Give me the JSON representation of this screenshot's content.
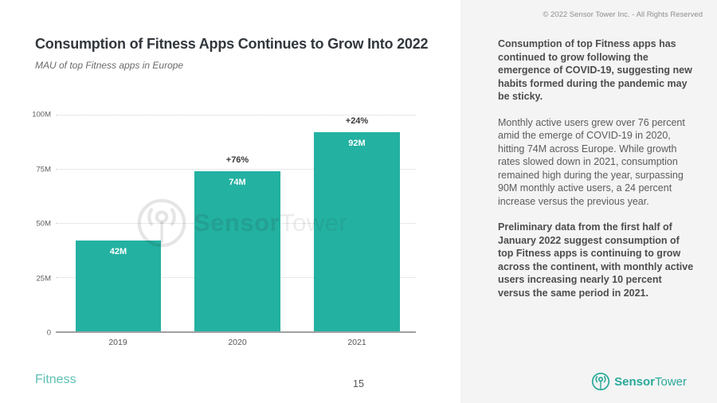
{
  "header": {
    "title": "Consumption of Fitness Apps Continues to Grow Into 2022",
    "subtitle": "MAU of top Fitness apps in Europe"
  },
  "chart_data": {
    "type": "bar",
    "title": "MAU of top Fitness apps in Europe",
    "categories": [
      "2019",
      "2020",
      "2021"
    ],
    "values": [
      42,
      74,
      92
    ],
    "unit": "M",
    "bar_labels": [
      "42M",
      "74M",
      "92M"
    ],
    "growth_labels": [
      null,
      "+76%",
      "+24%"
    ],
    "ylim": [
      0,
      100
    ],
    "yticks": [
      "100M",
      "75M",
      "50M",
      "25M",
      "0"
    ],
    "bar_color": "#23b1a1",
    "grid": true,
    "legend": false,
    "watermark_bold": "Sensor",
    "watermark_light": "Tower"
  },
  "sidebar": {
    "paragraphs": [
      {
        "bold": true,
        "text": "Consumption of top Fitness apps has continued to grow following the emergence of COVID-19, suggesting new habits formed during the pandemic may be sticky."
      },
      {
        "bold": false,
        "text": "Monthly active users grew over 76 percent amid the emerge of COVID-19 in 2020, hitting 74M across Europe. While growth rates slowed down in 2021, consumption remained high during the year, surpassing 90M monthly active users, a 24 percent increase versus the previous year."
      },
      {
        "bold": true,
        "text": "Preliminary data from the first half of January 2022 suggest consumption of top Fitness apps is continuing to grow across the continent, with monthly active users increasing nearly 10 percent versus the same period in 2021."
      }
    ],
    "copyright": "© 2022 Sensor Tower Inc. - All Rights Reserved"
  },
  "footer": {
    "category": "Fitness",
    "page_number": "15"
  },
  "branding": {
    "logo_bold": "Sensor",
    "logo_light": "Tower",
    "logo_color": "#2aa99a"
  },
  "colors": {
    "accent_teal": "#23b1a1",
    "footer_teal": "#5ec0b4",
    "sidebar_bg": "#f4f4f4",
    "title_text": "#32373c"
  }
}
